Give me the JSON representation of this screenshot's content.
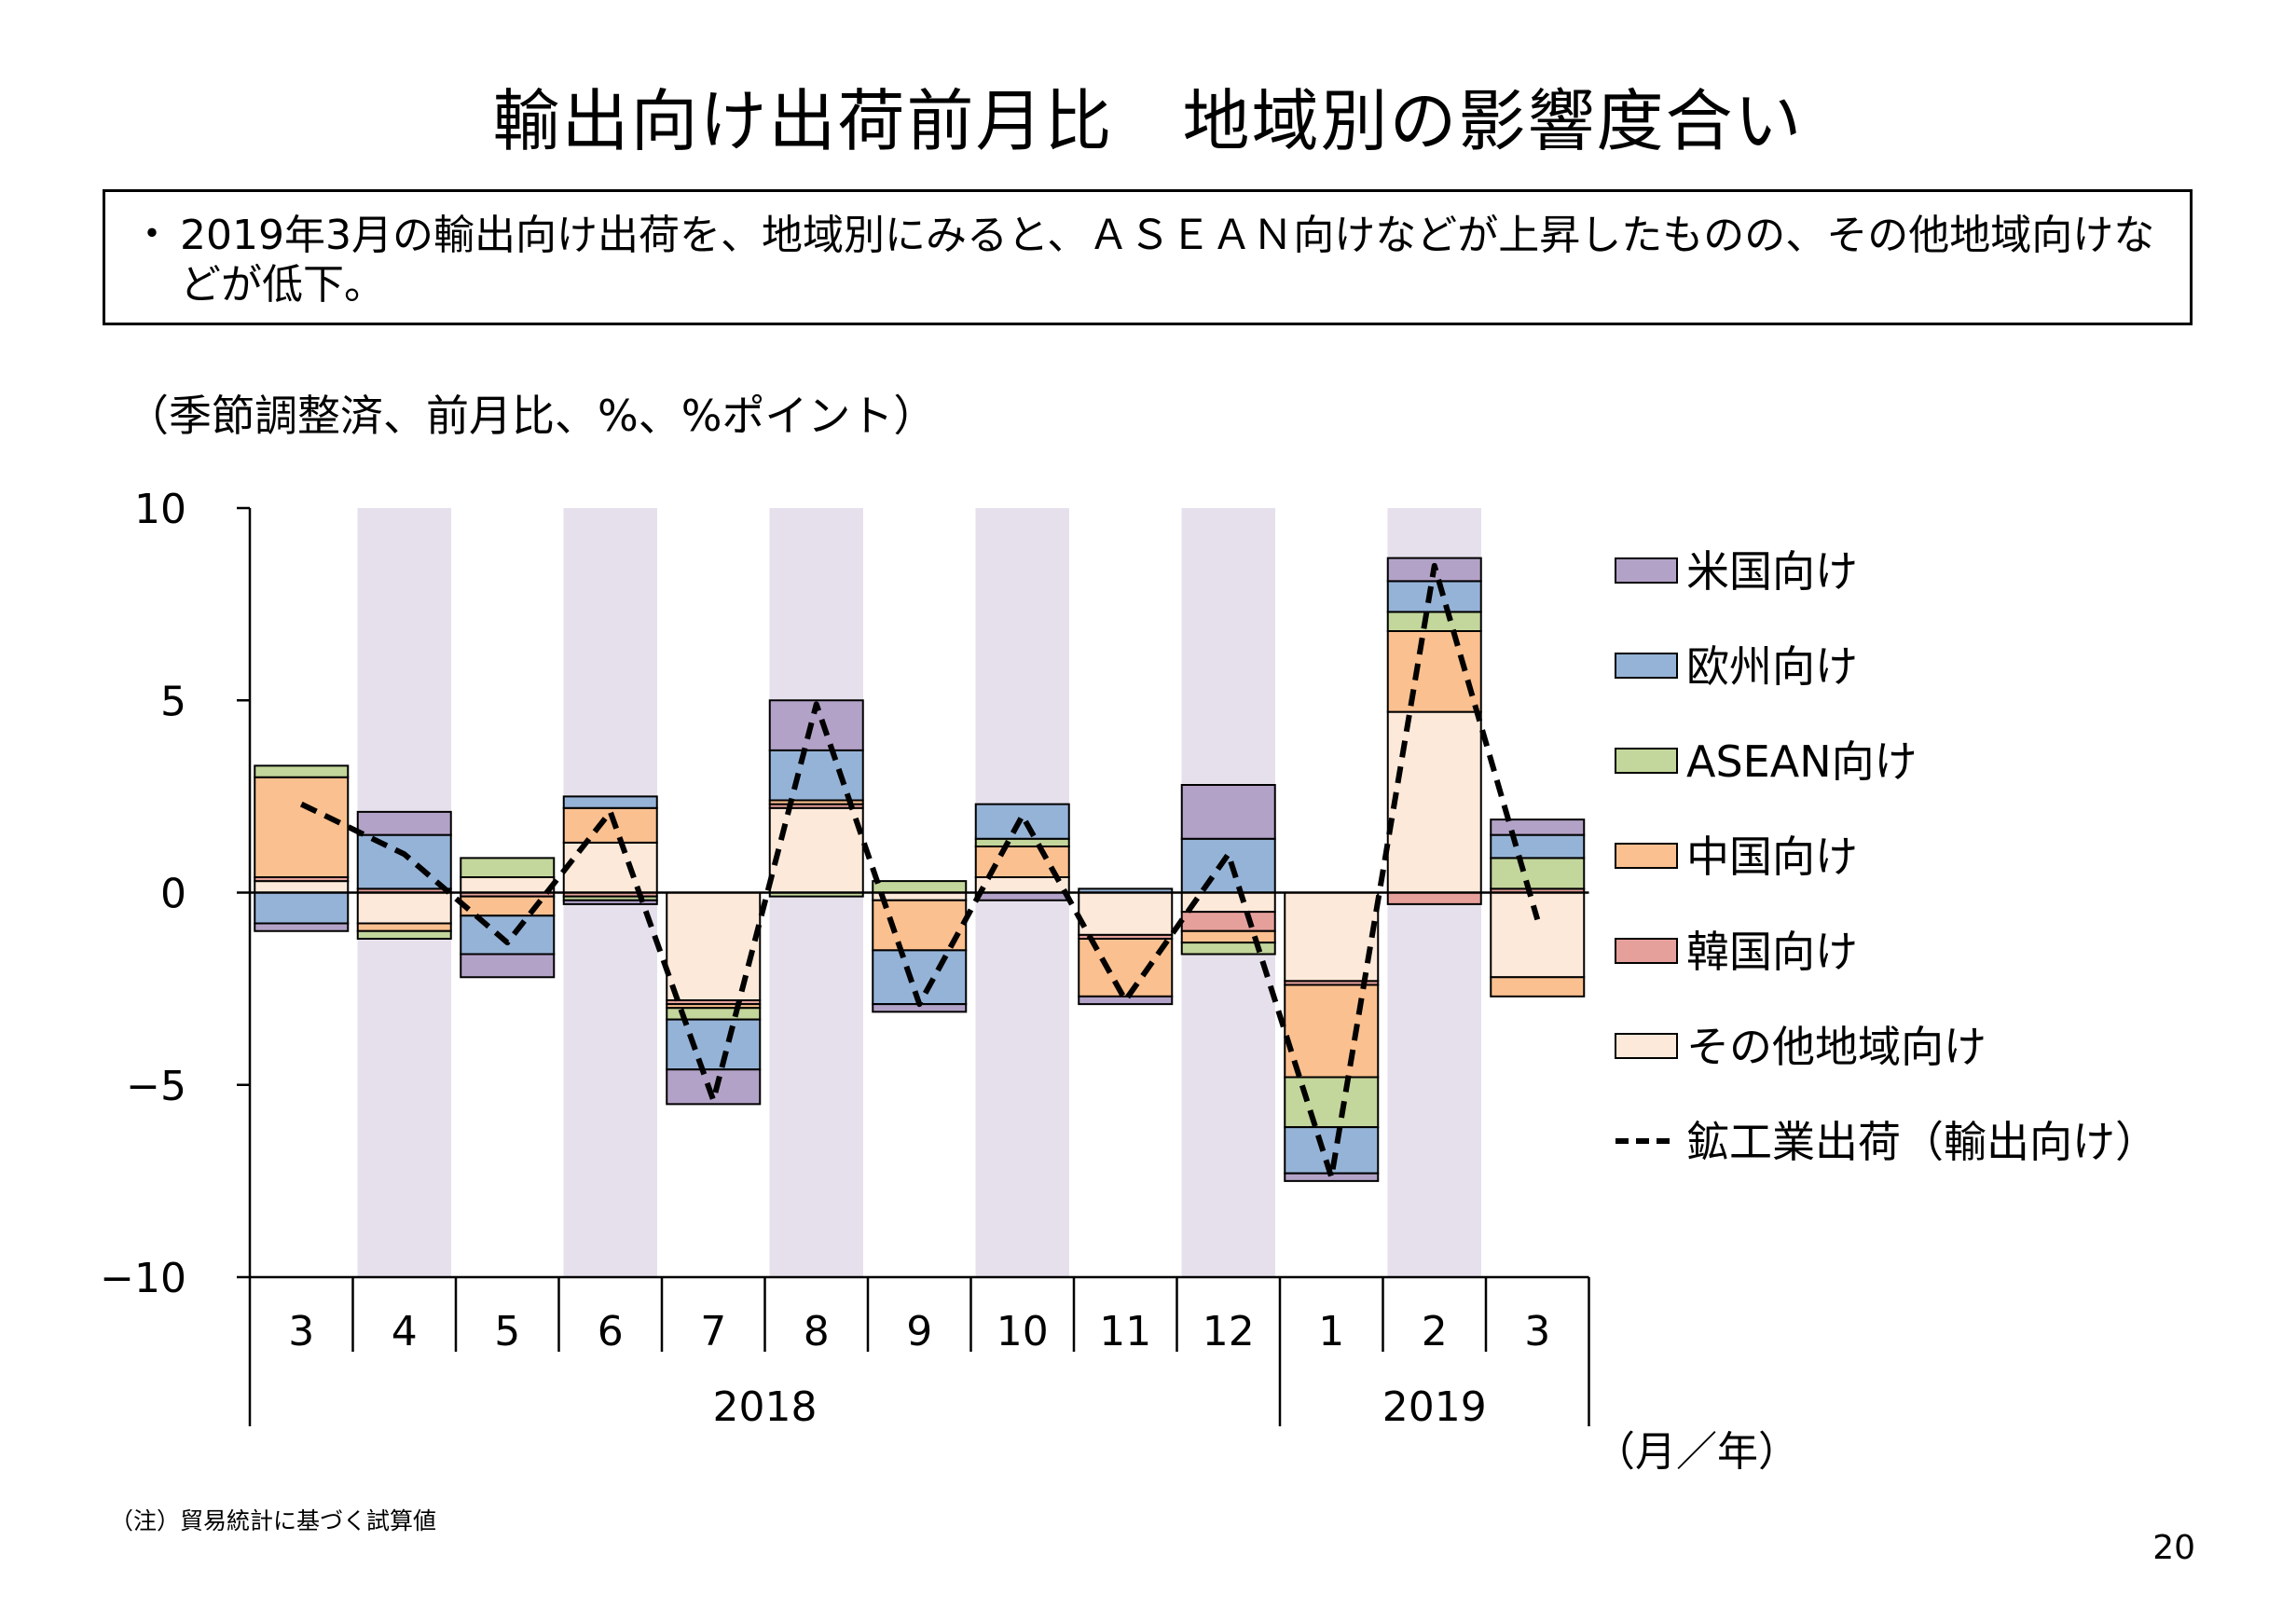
{
  "title": "輸出向け出荷前月比　地域別の影響度合い",
  "summary": {
    "bullet": "・",
    "text": "2019年3月の輸出向け出荷を、地域別にみると、ＡＳＥＡＮ向けなどが上昇したものの、その他地域向けなどが低下。"
  },
  "unit_label": "（季節調整済、前月比、%、%ポイント）",
  "note": "（注）貿易統計に基づく試算値",
  "page_number": "20",
  "chart_data": {
    "type": "bar",
    "stacked": true,
    "x_axis_unit_label": "（月／年）",
    "categories": [
      "3",
      "4",
      "5",
      "6",
      "7",
      "8",
      "9",
      "10",
      "11",
      "12",
      "1",
      "2",
      "3"
    ],
    "year_groups": [
      {
        "label": "2018",
        "span": 10
      },
      {
        "label": "2019",
        "span": 3
      }
    ],
    "ylim": [
      -10,
      10
    ],
    "yticks": [
      10,
      5,
      0,
      -5,
      -10
    ],
    "shaded_categories": [
      "4",
      "6",
      "8",
      "10",
      "12",
      "2"
    ],
    "series": [
      {
        "name": "その他地域向け",
        "color": "#fde9d9",
        "values": [
          0.3,
          -0.8,
          0.4,
          1.3,
          -2.8,
          2.2,
          -0.2,
          0.4,
          -1.1,
          -0.5,
          -2.3,
          4.7,
          -2.2
        ]
      },
      {
        "name": "韓国向け",
        "color": "#e6a09b",
        "values": [
          0.1,
          0.1,
          -0.1,
          -0.1,
          -0.1,
          0.1,
          0.0,
          0.0,
          -0.1,
          -0.5,
          -0.1,
          -0.3,
          0.1
        ]
      },
      {
        "name": "中国向け",
        "color": "#fbc08f",
        "values": [
          2.6,
          -0.2,
          -0.5,
          0.9,
          -0.1,
          0.1,
          -1.3,
          0.8,
          -1.5,
          -0.3,
          -2.4,
          2.1,
          -0.5
        ]
      },
      {
        "name": "ASEAN向け",
        "color": "#c3d69b",
        "values": [
          0.3,
          -0.2,
          0.5,
          -0.1,
          -0.3,
          -0.1,
          0.3,
          0.2,
          0.0,
          -0.3,
          -1.3,
          0.5,
          0.8
        ]
      },
      {
        "name": "欧州向け",
        "color": "#95b3d7",
        "values": [
          -0.8,
          1.4,
          -1.0,
          0.3,
          -1.3,
          1.3,
          -1.4,
          0.9,
          0.1,
          1.4,
          -1.2,
          0.8,
          0.6
        ]
      },
      {
        "name": "米国向け",
        "color": "#b3a2c7",
        "values": [
          -0.2,
          0.6,
          -0.6,
          -0.1,
          -0.9,
          1.3,
          -0.2,
          -0.2,
          -0.2,
          1.4,
          -0.2,
          0.6,
          0.4
        ]
      }
    ],
    "line_series": {
      "name": "鉱工業出荷（輸出向け）",
      "style": "dashed",
      "color": "#000000",
      "values": [
        2.3,
        1.0,
        -1.3,
        2.1,
        -5.4,
        4.9,
        -2.9,
        2.0,
        -2.8,
        1.0,
        -7.4,
        8.5,
        -0.7
      ]
    },
    "legend_order": [
      "米国向け",
      "欧州向け",
      "ASEAN向け",
      "中国向け",
      "韓国向け",
      "その他地域向け",
      "鉱工業出荷（輸出向け）"
    ],
    "legend_position": "right",
    "grid": false
  },
  "colors": {
    "shading": "#e6e0ec",
    "bar_outline": "#000000",
    "axis": "#000000"
  }
}
